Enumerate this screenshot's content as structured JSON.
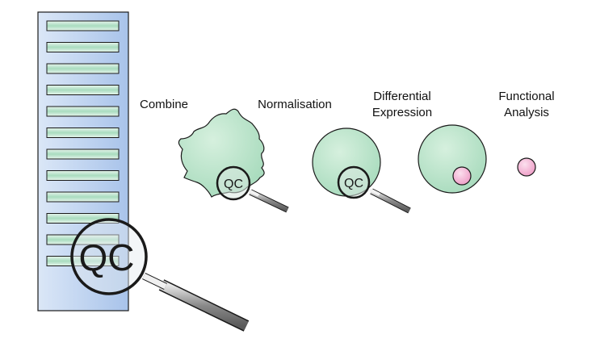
{
  "labels": {
    "combine": "Combine",
    "normalisation": "Normalisation",
    "differential_line1": "Differential",
    "differential_line2": "Expression",
    "functional_line1": "Functional",
    "functional_line2": "Analysis"
  },
  "magnifier_text": "QC",
  "array_rows": 12,
  "colors": {
    "array_panel_light": "#dce8f8",
    "array_panel_dark": "#a9c4ea",
    "row_green": "#bfe6cf",
    "blob_green": "#c3e8cf",
    "pink": "#f2a8cf",
    "outline": "#1a1a1a",
    "handle": "#8c8c8c"
  }
}
